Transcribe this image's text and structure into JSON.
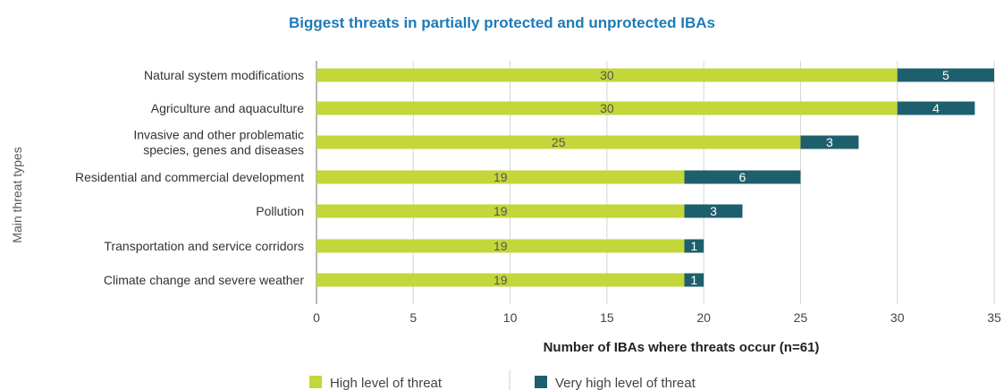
{
  "chart_data": {
    "type": "bar",
    "orientation": "horizontal",
    "stacked": true,
    "title": "Biggest threats in partially protected and unprotected IBAs",
    "xlabel": "Number of IBAs where threats occur (n=61)",
    "ylabel": "Main threat types",
    "categories": [
      "Natural system modifications",
      "Agriculture and aquaculture",
      "Invasive and other problematic species, genes and diseases",
      "Residential and commercial development",
      "Pollution",
      "Transportation and service corridors",
      "Climate change and severe weather"
    ],
    "category_lines": [
      [
        "Natural system modifications"
      ],
      [
        "Agriculture and aquaculture"
      ],
      [
        "Invasive and other problematic",
        "species, genes and diseases"
      ],
      [
        "Residential and commercial development"
      ],
      [
        "Pollution"
      ],
      [
        "Transportation and service corridors"
      ],
      [
        "Climate change and severe weather"
      ]
    ],
    "series": [
      {
        "name": "High level of threat",
        "values": [
          30,
          30,
          25,
          19,
          19,
          19,
          19
        ],
        "color": "#c3d63a",
        "label_color": "#555555"
      },
      {
        "name": "Very high level of threat",
        "values": [
          5,
          4,
          3,
          6,
          3,
          1,
          1
        ],
        "color": "#1e5f6e",
        "label_color": "#ffffff"
      }
    ],
    "xlim": [
      0,
      35
    ],
    "xticks": [
      0,
      5,
      10,
      15,
      20,
      25,
      30,
      35
    ],
    "grid": true,
    "legend_position": "bottom"
  }
}
